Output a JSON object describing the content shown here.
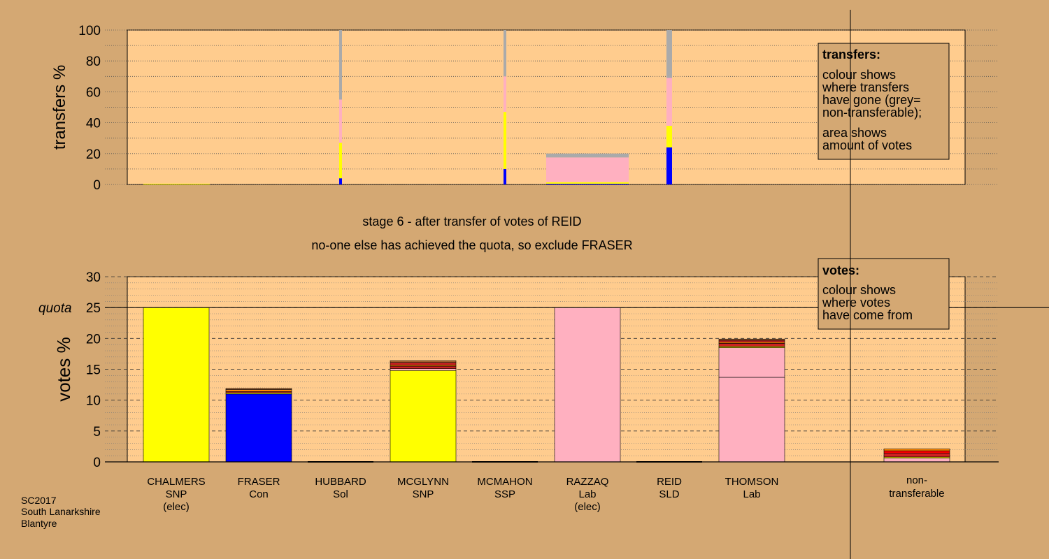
{
  "chart_data": [
    {
      "type": "bar",
      "title": "",
      "ylabel": "transfers %",
      "ylim": [
        0,
        100
      ],
      "yticks": [
        0,
        20,
        40,
        60,
        80,
        100
      ],
      "colors": {
        "SNP": "#ffff00",
        "Con": "#0000ff",
        "Lab": "#ffb0c0",
        "nontransferable": "#aaaaaa",
        "plot_bg": "#ffcc8e",
        "page_bg": "#d4a873"
      },
      "legend": {
        "title": "transfers:",
        "lines": [
          "colour shows",
          "where transfers",
          "have gone (grey=",
          "non-transferable);",
          "area shows",
          "amount of votes"
        ]
      },
      "bars": [
        {
          "candidate": "CHALMERS",
          "height": 0.5,
          "stack": [
            {
              "party": "SNP",
              "value": 0.5
            }
          ]
        },
        {
          "candidate": "HUBBARD",
          "width": "thin",
          "stack": [
            {
              "party": "Con",
              "value": 4
            },
            {
              "party": "SNP",
              "value": 23
            },
            {
              "party": "Lab",
              "value": 28
            },
            {
              "party": "nontransferable",
              "value": 45
            }
          ]
        },
        {
          "candidate": "MCMAHON",
          "width": "thin",
          "stack": [
            {
              "party": "Con",
              "value": 10
            },
            {
              "party": "SNP",
              "value": 37
            },
            {
              "party": "Lab",
              "value": 23
            },
            {
              "party": "nontransferable",
              "value": 30
            }
          ]
        },
        {
          "candidate": "RAZZAQ",
          "stack": [
            {
              "party": "Con",
              "value": 0.5
            },
            {
              "party": "SNP",
              "value": 1
            },
            {
              "party": "Lab",
              "value": 16
            },
            {
              "party": "nontransferable",
              "value": 2.5
            }
          ]
        },
        {
          "candidate": "REID",
          "width": "thin",
          "stack": [
            {
              "party": "Con",
              "value": 24
            },
            {
              "party": "SNP",
              "value": 14
            },
            {
              "party": "Lab",
              "value": 31
            },
            {
              "party": "nontransferable",
              "value": 31
            }
          ]
        }
      ]
    },
    {
      "type": "bar",
      "title": "",
      "ylabel": "votes %",
      "ylim": [
        0,
        30
      ],
      "yticks": [
        0,
        5,
        10,
        15,
        20,
        25,
        30
      ],
      "quota": 25,
      "quota_label": "quota",
      "legend": {
        "title": "votes:",
        "lines": [
          "colour shows",
          "where votes",
          "have come from"
        ]
      },
      "categories": [
        {
          "name": "CHALMERS",
          "party": "SNP",
          "note": "(elec)"
        },
        {
          "name": "FRASER",
          "party": "Con",
          "note": ""
        },
        {
          "name": "HUBBARD",
          "party": "Sol",
          "note": ""
        },
        {
          "name": "MCGLYNN",
          "party": "SNP",
          "note": ""
        },
        {
          "name": "MCMAHON",
          "party": "SSP",
          "note": ""
        },
        {
          "name": "RAZZAQ",
          "party": "Lab",
          "note": "(elec)"
        },
        {
          "name": "REID",
          "party": "SLD",
          "note": ""
        },
        {
          "name": "THOMSON",
          "party": "Lab",
          "note": ""
        }
      ],
      "nontransferable_label": [
        "non-",
        "transferable"
      ],
      "bars": [
        {
          "candidate": "CHALMERS",
          "stack": [
            {
              "color": "#ffff00",
              "value": 25
            }
          ]
        },
        {
          "candidate": "FRASER",
          "stack": [
            {
              "color": "#0000ff",
              "value": 11
            },
            {
              "color": "#ffff00",
              "value": 0.2
            },
            {
              "color": "#cc2222",
              "value": 0.2
            },
            {
              "color": "#ff8800",
              "value": 0.3
            },
            {
              "color": "#aa6633",
              "value": 0.2
            }
          ]
        },
        {
          "candidate": "HUBBARD",
          "stack": []
        },
        {
          "candidate": "MCGLYNN",
          "stack": [
            {
              "color": "#ffff00",
              "value": 14.8
            },
            {
              "color": "#ffb0c0",
              "value": 0.3
            },
            {
              "color": "#cc2222",
              "value": 0.4
            },
            {
              "color": "#ff8800",
              "value": 0.2
            },
            {
              "color": "#cc2222",
              "value": 0.4
            },
            {
              "color": "#aa6633",
              "value": 0.3
            }
          ]
        },
        {
          "candidate": "MCMAHON",
          "stack": []
        },
        {
          "candidate": "RAZZAQ",
          "stack": [
            {
              "color": "#ffb0c0",
              "value": 25
            }
          ]
        },
        {
          "candidate": "REID",
          "stack": []
        },
        {
          "candidate": "THOMSON",
          "stack": [
            {
              "color": "#ffb0c0",
              "value": 13.7
            },
            {
              "color": "#ffb0c0",
              "value": 4.8
            },
            {
              "color": "#ffff00",
              "value": 0.2
            },
            {
              "color": "#cc2222",
              "value": 0.5
            },
            {
              "color": "#ff8800",
              "value": 0.2
            },
            {
              "color": "#cc2222",
              "value": 0.3
            },
            {
              "color": "#aa6633",
              "value": 0.2
            }
          ]
        },
        {
          "candidate": "non-transferable",
          "stack": [
            {
              "color": "#ffb0c0",
              "value": 0.6
            },
            {
              "color": "#ffff00",
              "value": 0.2
            },
            {
              "color": "#cc2222",
              "value": 0.6
            },
            {
              "color": "#ff0000",
              "value": 0.4
            },
            {
              "color": "#ff8800",
              "value": 0.3
            }
          ]
        }
      ]
    }
  ],
  "stage_text": "stage 6 - after transfer of votes of REID",
  "stage_subtext": "no-one else has achieved the quota, so exclude FRASER",
  "footer": [
    "SC2017",
    "South Lanarkshire",
    "Blantyre"
  ]
}
